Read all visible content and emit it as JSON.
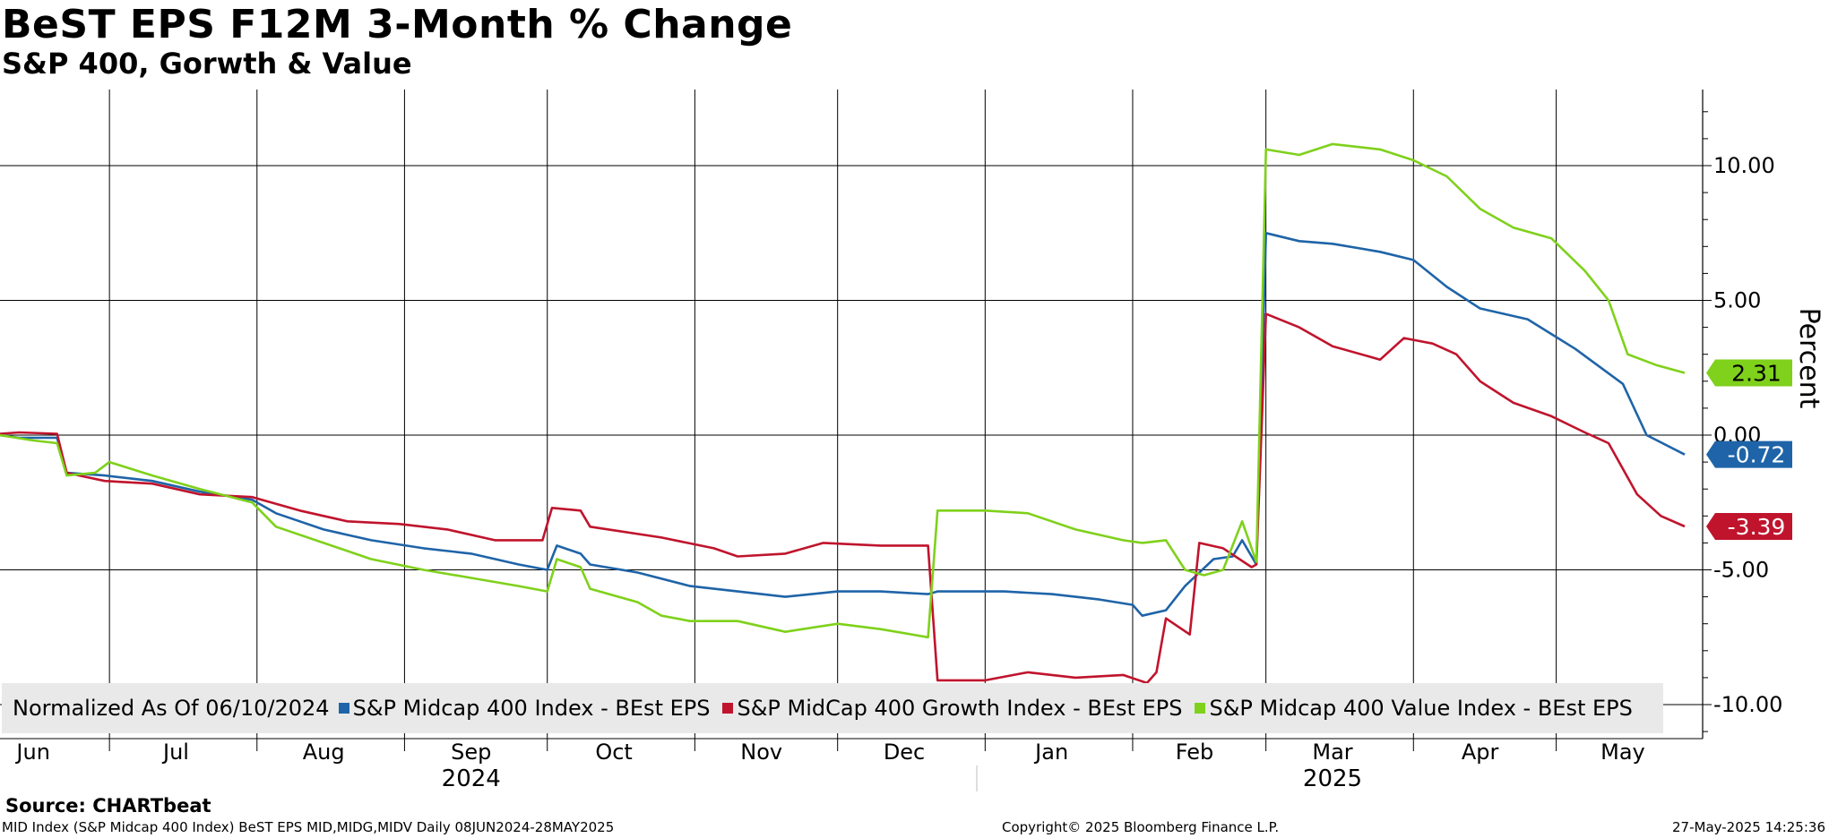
{
  "title": "BeST EPS F12M 3-Month % Change",
  "subtitle": "S&P 400, Gorwth & Value",
  "legend": {
    "normalized": "Normalized As Of 06/10/2024",
    "items": [
      {
        "label": "S&P Midcap 400 Index - BEst EPS",
        "color": "#1f64a8"
      },
      {
        "label": "S&P MidCap 400 Growth Index - BEst EPS",
        "color": "#c0142d"
      },
      {
        "label": "S&P Midcap 400 Value Index - BEst EPS",
        "color": "#7fd11b"
      }
    ]
  },
  "source": "Source:  CHARTbeat",
  "footer": {
    "left": "MID Index (S&P Midcap 400 Index) BeST EPS MID,MIDG,MIDV  Daily 08JUN2024-28MAY2025",
    "center": "Copyright© 2025 Bloomberg Finance L.P.",
    "right": "27-May-2025 14:25:36"
  },
  "chart_data": {
    "type": "line",
    "ylabel": "Percent",
    "ylim": [
      -11,
      12.5
    ],
    "yticks": [
      "10.00",
      "5.00",
      "0.00",
      "-5.00",
      "-10.00"
    ],
    "ytick_values": [
      10,
      5,
      0,
      -5,
      -10
    ],
    "x_range": [
      "2024-06-08",
      "2025-05-28"
    ],
    "months": [
      "Jun",
      "Jul",
      "Aug",
      "Sep",
      "Oct",
      "Nov",
      "Dec",
      "Jan",
      "Feb",
      "Mar",
      "Apr",
      "May"
    ],
    "month_dates": [
      "2024-06-15",
      "2024-07-15",
      "2024-08-15",
      "2024-09-15",
      "2024-10-15",
      "2024-11-15",
      "2024-12-15",
      "2025-01-15",
      "2025-02-14",
      "2025-03-15",
      "2025-04-15",
      "2025-05-15"
    ],
    "years": [
      {
        "label": "2024",
        "date": "2024-09-15"
      },
      {
        "label": "2025",
        "date": "2025-03-15"
      }
    ],
    "last_values": [
      {
        "label": "2.31",
        "value": 2.31,
        "color": "#7fd11b"
      },
      {
        "label": "-0.72",
        "value": -0.72,
        "color": "#1f64a8"
      },
      {
        "label": "-3.39",
        "value": -3.39,
        "color": "#c0142d"
      }
    ],
    "series": [
      {
        "name": "S&P Midcap 400 Index - BEst EPS",
        "color": "#1f64a8",
        "points": [
          [
            "2024-06-08",
            0.0
          ],
          [
            "2024-06-12",
            -0.1
          ],
          [
            "2024-06-20",
            -0.1
          ],
          [
            "2024-06-22",
            -1.4
          ],
          [
            "2024-06-30",
            -1.5
          ],
          [
            "2024-07-10",
            -1.7
          ],
          [
            "2024-07-20",
            -2.1
          ],
          [
            "2024-07-31",
            -2.4
          ],
          [
            "2024-08-05",
            -2.9
          ],
          [
            "2024-08-15",
            -3.5
          ],
          [
            "2024-08-25",
            -3.9
          ],
          [
            "2024-09-05",
            -4.2
          ],
          [
            "2024-09-15",
            -4.4
          ],
          [
            "2024-09-25",
            -4.8
          ],
          [
            "2024-10-01",
            -5.0
          ],
          [
            "2024-10-03",
            -4.1
          ],
          [
            "2024-10-08",
            -4.4
          ],
          [
            "2024-10-10",
            -4.8
          ],
          [
            "2024-10-20",
            -5.1
          ],
          [
            "2024-10-31",
            -5.6
          ],
          [
            "2024-11-10",
            -5.8
          ],
          [
            "2024-11-20",
            -6.0
          ],
          [
            "2024-12-01",
            -5.8
          ],
          [
            "2024-12-10",
            -5.8
          ],
          [
            "2024-12-20",
            -5.9
          ],
          [
            "2024-12-22",
            -5.8
          ],
          [
            "2025-01-05",
            -5.8
          ],
          [
            "2025-01-15",
            -5.9
          ],
          [
            "2025-01-25",
            -6.1
          ],
          [
            "2025-02-01",
            -6.3
          ],
          [
            "2025-02-03",
            -6.7
          ],
          [
            "2025-02-08",
            -6.5
          ],
          [
            "2025-02-12",
            -5.6
          ],
          [
            "2025-02-18",
            -4.6
          ],
          [
            "2025-02-22",
            -4.5
          ],
          [
            "2025-02-24",
            -3.9
          ],
          [
            "2025-02-27",
            -4.8
          ],
          [
            "2025-03-01",
            7.5
          ],
          [
            "2025-03-08",
            7.2
          ],
          [
            "2025-03-15",
            7.1
          ],
          [
            "2025-03-25",
            6.8
          ],
          [
            "2025-04-01",
            6.5
          ],
          [
            "2025-04-08",
            5.5
          ],
          [
            "2025-04-15",
            4.7
          ],
          [
            "2025-04-25",
            4.3
          ],
          [
            "2025-05-05",
            3.2
          ],
          [
            "2025-05-15",
            1.9
          ],
          [
            "2025-05-20",
            0.0
          ],
          [
            "2025-05-28",
            -0.72
          ]
        ]
      },
      {
        "name": "S&P MidCap 400 Growth Index - BEst EPS",
        "color": "#c0142d",
        "points": [
          [
            "2024-06-08",
            0.05
          ],
          [
            "2024-06-12",
            0.1
          ],
          [
            "2024-06-20",
            0.05
          ],
          [
            "2024-06-22",
            -1.4
          ],
          [
            "2024-06-30",
            -1.7
          ],
          [
            "2024-07-10",
            -1.8
          ],
          [
            "2024-07-20",
            -2.2
          ],
          [
            "2024-07-31",
            -2.3
          ],
          [
            "2024-08-10",
            -2.8
          ],
          [
            "2024-08-20",
            -3.2
          ],
          [
            "2024-08-31",
            -3.3
          ],
          [
            "2024-09-10",
            -3.5
          ],
          [
            "2024-09-20",
            -3.9
          ],
          [
            "2024-09-30",
            -3.9
          ],
          [
            "2024-10-02",
            -2.7
          ],
          [
            "2024-10-08",
            -2.8
          ],
          [
            "2024-10-10",
            -3.4
          ],
          [
            "2024-10-25",
            -3.8
          ],
          [
            "2024-11-05",
            -4.2
          ],
          [
            "2024-11-10",
            -4.5
          ],
          [
            "2024-11-20",
            -4.4
          ],
          [
            "2024-11-28",
            -4.0
          ],
          [
            "2024-12-10",
            -4.1
          ],
          [
            "2024-12-20",
            -4.1
          ],
          [
            "2024-12-22",
            -9.1
          ],
          [
            "2025-01-01",
            -9.1
          ],
          [
            "2025-01-10",
            -8.8
          ],
          [
            "2025-01-20",
            -9.0
          ],
          [
            "2025-01-30",
            -8.9
          ],
          [
            "2025-02-04",
            -9.2
          ],
          [
            "2025-02-06",
            -8.8
          ],
          [
            "2025-02-08",
            -6.8
          ],
          [
            "2025-02-13",
            -7.4
          ],
          [
            "2025-02-15",
            -4.0
          ],
          [
            "2025-02-20",
            -4.2
          ],
          [
            "2025-02-26",
            -4.9
          ],
          [
            "2025-02-27",
            -4.8
          ],
          [
            "2025-03-01",
            4.5
          ],
          [
            "2025-03-08",
            4.0
          ],
          [
            "2025-03-15",
            3.3
          ],
          [
            "2025-03-25",
            2.8
          ],
          [
            "2025-03-30",
            3.6
          ],
          [
            "2025-04-05",
            3.4
          ],
          [
            "2025-04-10",
            3.0
          ],
          [
            "2025-04-15",
            2.0
          ],
          [
            "2025-04-22",
            1.2
          ],
          [
            "2025-04-30",
            0.7
          ],
          [
            "2025-05-07",
            0.1
          ],
          [
            "2025-05-12",
            -0.3
          ],
          [
            "2025-05-18",
            -2.2
          ],
          [
            "2025-05-23",
            -3.0
          ],
          [
            "2025-05-28",
            -3.39
          ]
        ]
      },
      {
        "name": "S&P Midcap 400 Value Index - BEst EPS",
        "color": "#7fd11b",
        "points": [
          [
            "2024-06-08",
            0.0
          ],
          [
            "2024-06-15",
            -0.2
          ],
          [
            "2024-06-20",
            -0.3
          ],
          [
            "2024-06-22",
            -1.5
          ],
          [
            "2024-06-28",
            -1.4
          ],
          [
            "2024-07-01",
            -1.0
          ],
          [
            "2024-07-10",
            -1.5
          ],
          [
            "2024-07-20",
            -2.0
          ],
          [
            "2024-07-31",
            -2.5
          ],
          [
            "2024-08-05",
            -3.4
          ],
          [
            "2024-08-15",
            -4.0
          ],
          [
            "2024-08-25",
            -4.6
          ],
          [
            "2024-09-05",
            -5.0
          ],
          [
            "2024-09-15",
            -5.3
          ],
          [
            "2024-09-25",
            -5.6
          ],
          [
            "2024-10-01",
            -5.8
          ],
          [
            "2024-10-03",
            -4.6
          ],
          [
            "2024-10-08",
            -4.9
          ],
          [
            "2024-10-10",
            -5.7
          ],
          [
            "2024-10-20",
            -6.2
          ],
          [
            "2024-10-25",
            -6.7
          ],
          [
            "2024-10-31",
            -6.9
          ],
          [
            "2024-11-10",
            -6.9
          ],
          [
            "2024-11-20",
            -7.3
          ],
          [
            "2024-12-01",
            -7.0
          ],
          [
            "2024-12-10",
            -7.2
          ],
          [
            "2024-12-20",
            -7.5
          ],
          [
            "2024-12-22",
            -2.8
          ],
          [
            "2025-01-01",
            -2.8
          ],
          [
            "2025-01-10",
            -2.9
          ],
          [
            "2025-01-20",
            -3.5
          ],
          [
            "2025-01-30",
            -3.9
          ],
          [
            "2025-02-03",
            -4.0
          ],
          [
            "2025-02-08",
            -3.9
          ],
          [
            "2025-02-12",
            -5.0
          ],
          [
            "2025-02-16",
            -5.2
          ],
          [
            "2025-02-20",
            -5.0
          ],
          [
            "2025-02-24",
            -3.2
          ],
          [
            "2025-02-27",
            -4.7
          ],
          [
            "2025-03-01",
            10.6
          ],
          [
            "2025-03-08",
            10.4
          ],
          [
            "2025-03-15",
            10.8
          ],
          [
            "2025-03-25",
            10.6
          ],
          [
            "2025-04-01",
            10.2
          ],
          [
            "2025-04-08",
            9.6
          ],
          [
            "2025-04-15",
            8.4
          ],
          [
            "2025-04-22",
            7.7
          ],
          [
            "2025-04-30",
            7.3
          ],
          [
            "2025-05-07",
            6.1
          ],
          [
            "2025-05-12",
            5.0
          ],
          [
            "2025-05-16",
            3.0
          ],
          [
            "2025-05-22",
            2.6
          ],
          [
            "2025-05-28",
            2.31
          ]
        ]
      }
    ]
  }
}
